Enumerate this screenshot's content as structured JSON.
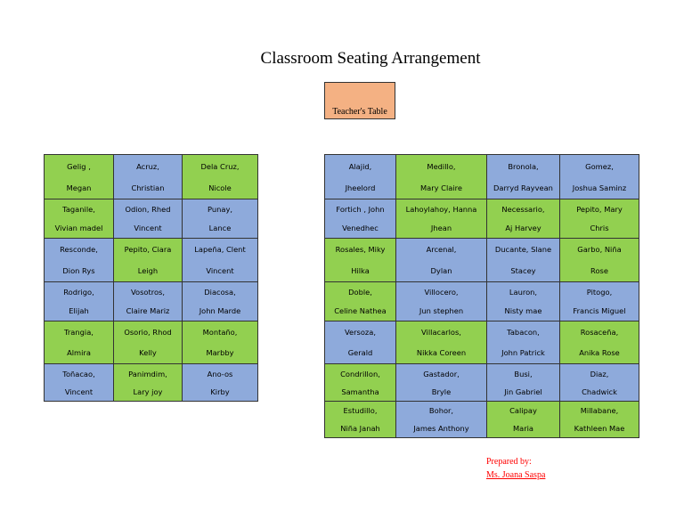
{
  "title": "Classroom Seating Arrangement",
  "teacher_table": "Teacher's Table",
  "colors": {
    "green": "#92d050",
    "blue": "#8eaadb",
    "teacher": "#f4b183",
    "prepared": "#ff0000"
  },
  "left_grid": [
    [
      {
        "l1": "Gelig ,",
        "l2": "Megan",
        "c": "g"
      },
      {
        "l1": "Acruz,",
        "l2": "Christian",
        "c": "b"
      },
      {
        "l1": "Dela Cruz,",
        "l2": "Nicole",
        "c": "g"
      }
    ],
    [
      {
        "l1": "Taganile,",
        "l2": "Vivian madel",
        "c": "g"
      },
      {
        "l1": "Odion, Rhed",
        "l2": "Vincent",
        "c": "b"
      },
      {
        "l1": "Punay,",
        "l2": "Lance",
        "c": "b"
      }
    ],
    [
      {
        "l1": "Resconde,",
        "l2": "Dion Rys",
        "c": "b"
      },
      {
        "l1": "Pepito, Ciara",
        "l2": "Leigh",
        "c": "g"
      },
      {
        "l1": "Lapeña, Clent",
        "l2": "Vincent",
        "c": "b"
      }
    ],
    [
      {
        "l1": "Rodrigo,",
        "l2": "Elijah",
        "c": "b"
      },
      {
        "l1": "Vosotros,",
        "l2": "Claire Mariz",
        "c": "b"
      },
      {
        "l1": "Diacosa,",
        "l2": "John Marde",
        "c": "b"
      }
    ],
    [
      {
        "l1": "Trangia,",
        "l2": "Almira",
        "c": "g"
      },
      {
        "l1": "Osorio, Rhod",
        "l2": "Kelly",
        "c": "g"
      },
      {
        "l1": "Montaño,",
        "l2": "Marbby",
        "c": "g"
      }
    ],
    [
      {
        "l1": "Toñacao,",
        "l2": "Vincent",
        "c": "b"
      },
      {
        "l1": "Panimdim,",
        "l2": "Lary joy",
        "c": "g"
      },
      {
        "l1": "Ano-os",
        "l2": "Kirby",
        "c": "b"
      }
    ]
  ],
  "right_grid": [
    [
      {
        "l1": "Alajid,",
        "l2": "Jheelord",
        "c": "b"
      },
      {
        "l1": "Medillo,",
        "l2": "Mary Claire",
        "c": "g"
      },
      {
        "l1": "Bronola,",
        "l2": "Darryd Rayvean",
        "c": "b"
      },
      {
        "l1": "Gomez,",
        "l2": "Joshua Saminz",
        "c": "b"
      }
    ],
    [
      {
        "l1": "Fortich , John",
        "l2": "Venedhec",
        "c": "b"
      },
      {
        "l1": "Lahoylahoy, Hanna",
        "l2": "Jhean",
        "c": "g"
      },
      {
        "l1": "Necessario,",
        "l2": "Aj Harvey",
        "c": "g"
      },
      {
        "l1": "Pepito, Mary",
        "l2": "Chris",
        "c": "g"
      }
    ],
    [
      {
        "l1": "Rosales, Miky",
        "l2": "Hilka",
        "c": "g"
      },
      {
        "l1": "Arcenal,",
        "l2": "Dylan",
        "c": "b"
      },
      {
        "l1": "Ducante, Slane",
        "l2": "Stacey",
        "c": "b"
      },
      {
        "l1": "Garbo, Niña",
        "l2": "Rose",
        "c": "g"
      }
    ],
    [
      {
        "l1": "Doble,",
        "l2": "Celine Nathea",
        "c": "g"
      },
      {
        "l1": "Villocero,",
        "l2": "Jun stephen",
        "c": "b"
      },
      {
        "l1": "Lauron,",
        "l2": "Nisty mae",
        "c": "b"
      },
      {
        "l1": "Pitogo,",
        "l2": "Francis Miguel",
        "c": "b"
      }
    ],
    [
      {
        "l1": "Versoza,",
        "l2": "Gerald",
        "c": "b"
      },
      {
        "l1": "Villacarlos,",
        "l2": "Nikka Coreen",
        "c": "g"
      },
      {
        "l1": "Tabacon,",
        "l2": "John Patrick",
        "c": "b"
      },
      {
        "l1": "Rosaceña,",
        "l2": "Anika Rose",
        "c": "g"
      }
    ],
    [
      {
        "l1": "Condrillon,",
        "l2": "Samantha",
        "c": "g"
      },
      {
        "l1": "Gastador,",
        "l2": "Bryle",
        "c": "b"
      },
      {
        "l1": "Busi,",
        "l2": "Jin Gabriel",
        "c": "b"
      },
      {
        "l1": "Diaz,",
        "l2": "Chadwick",
        "c": "b"
      }
    ],
    [
      {
        "l1": "Estudillo,",
        "l2": "Niña Janah",
        "c": "g"
      },
      {
        "l1": "Bohor,",
        "l2": "James Anthony",
        "c": "b"
      },
      {
        "l1": "Calipay",
        "l2": "Maria",
        "c": "g"
      },
      {
        "l1": "Millabane,",
        "l2": "Kathleen Mae",
        "c": "g"
      }
    ]
  ],
  "prepared_by": "Prepared by:",
  "prepared_name": "Ms. Joana Saspa"
}
